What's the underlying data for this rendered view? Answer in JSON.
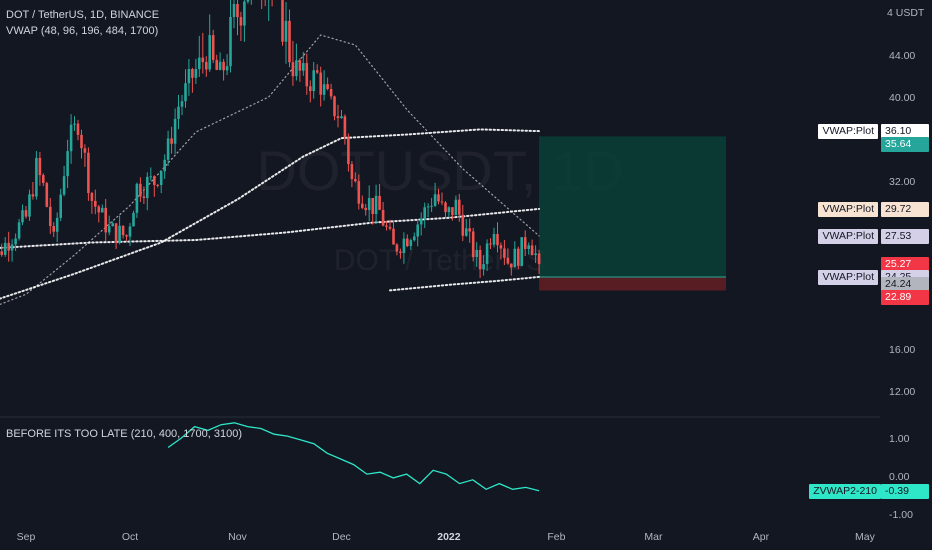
{
  "header": {
    "symbol": "DOT / TetherUS, 1D, BINANCE",
    "indicator": "VWAP (48, 96, 196, 484, 1700)"
  },
  "watermark": {
    "big": "DOTUSDT, 1D",
    "small": "DOT / TetherUS"
  },
  "axis": {
    "currency": "4 USDT",
    "price_ticks": [
      "44.00",
      "40.00",
      "32.00",
      "16.00",
      "12.00"
    ],
    "osc_ticks": [
      "1.00",
      "0.00",
      "-1.00"
    ],
    "time_ticks": [
      "Sep",
      "Oct",
      "Nov",
      "Dec",
      "2022",
      "Feb",
      "Mar",
      "Apr",
      "May"
    ]
  },
  "price_labels": [
    {
      "title": "VWAP:Plot",
      "value": "36.10",
      "title_bg": "#ffffff",
      "value_bg": "#ffffff",
      "value_color": "#131722"
    },
    {
      "title": "",
      "value": "35.64",
      "title_bg": "",
      "value_bg": "#26a69a",
      "value_color": "#ffffff"
    },
    {
      "title": "VWAP:Plot",
      "value": "29.72",
      "title_bg": "#f8e3d2",
      "value_bg": "#f8e3d2",
      "value_color": "#131722"
    },
    {
      "title": "VWAP:Plot",
      "value": "27.53",
      "title_bg": "#d4d0e8",
      "value_bg": "#d4d0e8",
      "value_color": "#131722"
    },
    {
      "title": "",
      "value": "25.27",
      "sub": "01:18:03",
      "title_bg": "",
      "value_bg": "#f23645",
      "value_color": "#ffffff"
    },
    {
      "title": "VWAP:Plot",
      "value": "24.25",
      "title_bg": "#d4d0e8",
      "value_bg": "#d4d0e8",
      "value_color": "#131722"
    },
    {
      "title": "",
      "value": "24.24",
      "title_bg": "",
      "value_bg": "#b2b5be",
      "value_color": "#131722"
    },
    {
      "title": "",
      "value": "22.89",
      "title_bg": "",
      "value_bg": "#f23645",
      "value_color": "#ffffff"
    }
  ],
  "oscillator": {
    "name": "BEFORE ITS TOO LATE (210, 400, 1700, 3100)",
    "label_title": "ZVWAP2-210",
    "label_value": "-0.39",
    "color": "#2ee6c8"
  },
  "colors": {
    "up": "#26a69a",
    "down": "#ef5350",
    "background": "#131722",
    "vwap": "#ffffff"
  },
  "chart_data": {
    "type": "candlestick",
    "symbol": "DOT / TetherUS",
    "interval": "1D",
    "exchange": "BINANCE",
    "ylim": [
      10,
      48
    ],
    "y_ticks": [
      12,
      16,
      32,
      40,
      44
    ],
    "x_months": [
      "Sep",
      "Oct",
      "Nov",
      "Dec",
      "2022",
      "Feb",
      "Mar",
      "Apr",
      "May"
    ],
    "close_path": [
      {
        "x": "Aug 20",
        "y": 24.0
      },
      {
        "x": "Aug 25",
        "y": 26.5
      },
      {
        "x": "Sep 1",
        "y": 29.0
      },
      {
        "x": "Sep 4",
        "y": 33.0
      },
      {
        "x": "Sep 6",
        "y": 31.5
      },
      {
        "x": "Sep 9",
        "y": 27.0
      },
      {
        "x": "Sep 13",
        "y": 35.0
      },
      {
        "x": "Sep 16",
        "y": 37.0
      },
      {
        "x": "Sep 20",
        "y": 30.5
      },
      {
        "x": "Sep 25",
        "y": 28.0
      },
      {
        "x": "Sep 30",
        "y": 27.5
      },
      {
        "x": "Oct 3",
        "y": 31.5
      },
      {
        "x": "Oct 8",
        "y": 32.0
      },
      {
        "x": "Oct 12",
        "y": 34.5
      },
      {
        "x": "Oct 15",
        "y": 39.0
      },
      {
        "x": "Oct 19",
        "y": 42.0
      },
      {
        "x": "Oct 23",
        "y": 44.0
      },
      {
        "x": "Oct 27",
        "y": 42.0
      },
      {
        "x": "Oct 31",
        "y": 45.5
      },
      {
        "x": "Nov 3",
        "y": 47.5
      },
      {
        "x": "Nov 5",
        "y": 48.5
      },
      {
        "x": "Nov 8",
        "y": 49.0
      },
      {
        "x": "Nov 11",
        "y": 47.5
      },
      {
        "x": "Nov 14",
        "y": 46.0
      },
      {
        "x": "Nov 17",
        "y": 43.0
      },
      {
        "x": "Nov 21",
        "y": 41.5
      },
      {
        "x": "Nov 24",
        "y": 42.0
      },
      {
        "x": "Nov 28",
        "y": 39.0
      },
      {
        "x": "Dec 1",
        "y": 37.5
      },
      {
        "x": "Dec 4",
        "y": 32.0
      },
      {
        "x": "Dec 8",
        "y": 30.5
      },
      {
        "x": "Dec 12",
        "y": 29.5
      },
      {
        "x": "Dec 16",
        "y": 26.5
      },
      {
        "x": "Dec 20",
        "y": 27.5
      },
      {
        "x": "Dec 24",
        "y": 29.0
      },
      {
        "x": "Dec 28",
        "y": 31.0
      },
      {
        "x": "Dec 31",
        "y": 29.0
      },
      {
        "x": "Jan 3",
        "y": 30.0
      },
      {
        "x": "Jan 7",
        "y": 27.0
      },
      {
        "x": "Jan 10",
        "y": 25.0
      },
      {
        "x": "Jan 14",
        "y": 28.5
      },
      {
        "x": "Jan 18",
        "y": 25.5
      },
      {
        "x": "Jan 21",
        "y": 26.0
      },
      {
        "x": "Jan 24",
        "y": 27.5
      },
      {
        "x": "Jan 27",
        "y": 25.27
      }
    ],
    "vwap_lines": [
      {
        "name": "VWAP:Plot",
        "last": 36.1
      },
      {
        "name": "VWAP:Plot",
        "last": 29.72
      },
      {
        "name": "VWAP:Plot",
        "last": 27.53
      },
      {
        "name": "VWAP:Plot",
        "last": 24.25
      }
    ],
    "position": {
      "target": 35.64,
      "entry": 24.24,
      "stop": 22.89
    },
    "last_price": 25.27,
    "countdown": "01:18:03",
    "oscillator": {
      "name": "BEFORE ITS TOO LATE (210, 400, 1700, 3100)",
      "ylim": [
        -1.3,
        1.4
      ],
      "y_ticks": [
        1.0,
        0.0,
        -1.0
      ],
      "values": [
        0.75,
        1.0,
        1.3,
        1.2,
        1.35,
        1.4,
        1.3,
        1.25,
        1.1,
        1.05,
        0.95,
        0.85,
        0.6,
        0.45,
        0.3,
        0.05,
        0.1,
        -0.05,
        0.05,
        -0.2,
        0.15,
        0.05,
        -0.2,
        -0.1,
        -0.35,
        -0.2,
        -0.35,
        -0.3,
        -0.39
      ],
      "last": -0.39
    }
  }
}
